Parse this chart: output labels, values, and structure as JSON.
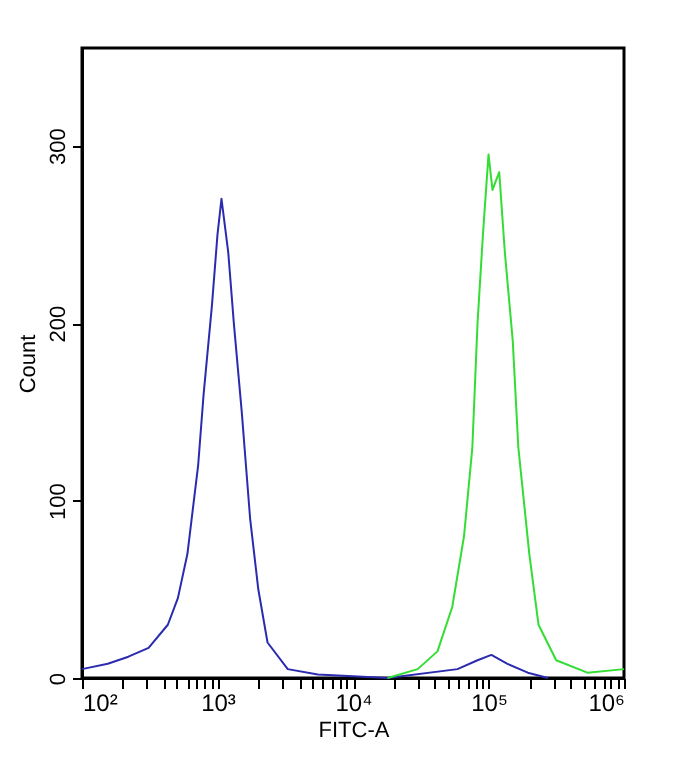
{
  "chart_data": {
    "type": "line",
    "xlabel": "FITC-A",
    "ylabel": "Count",
    "log": "x",
    "xlim": [
      100,
      1000000
    ],
    "ylim": [
      0,
      355
    ],
    "xticks": [
      {
        "value": 100,
        "label": "10²"
      },
      {
        "value": 200,
        "label": null
      },
      {
        "value": 300,
        "label": null
      },
      {
        "value": 400,
        "label": null
      },
      {
        "value": 500,
        "label": null
      },
      {
        "value": 600,
        "label": null
      },
      {
        "value": 700,
        "label": null
      },
      {
        "value": 800,
        "label": null
      },
      {
        "value": 900,
        "label": null
      },
      {
        "value": 1000,
        "label": "10³"
      },
      {
        "value": 2000,
        "label": null
      },
      {
        "value": 3000,
        "label": null
      },
      {
        "value": 4000,
        "label": null
      },
      {
        "value": 5000,
        "label": null
      },
      {
        "value": 6000,
        "label": null
      },
      {
        "value": 7000,
        "label": null
      },
      {
        "value": 8000,
        "label": null
      },
      {
        "value": 9000,
        "label": null
      },
      {
        "value": 10000,
        "label": "10⁴"
      },
      {
        "value": 20000,
        "label": null
      },
      {
        "value": 30000,
        "label": null
      },
      {
        "value": 40000,
        "label": null
      },
      {
        "value": 50000,
        "label": null
      },
      {
        "value": 60000,
        "label": null
      },
      {
        "value": 70000,
        "label": null
      },
      {
        "value": 80000,
        "label": null
      },
      {
        "value": 90000,
        "label": null
      },
      {
        "value": 100000,
        "label": "10⁵"
      },
      {
        "value": 200000,
        "label": null
      },
      {
        "value": 300000,
        "label": null
      },
      {
        "value": 400000,
        "label": null
      },
      {
        "value": 500000,
        "label": null
      },
      {
        "value": 600000,
        "label": null
      },
      {
        "value": 700000,
        "label": null
      },
      {
        "value": 800000,
        "label": null
      },
      {
        "value": 900000,
        "label": null
      },
      {
        "value": 1000000,
        "label": "10⁶"
      }
    ],
    "yticks": [
      0,
      100,
      200,
      300
    ],
    "grid": false,
    "legend": false,
    "marker": "none",
    "line_style": "solid",
    "series": [
      {
        "color": "#2b2bb0",
        "x": [
          100,
          155,
          220,
          310,
          430,
          510,
          600,
          720,
          790,
          910,
          1000,
          1070,
          1200,
          1320,
          1510,
          1740,
          2000,
          2340,
          3300,
          5500,
          18000,
          59000,
          83000,
          105000,
          138000,
          195000,
          275000
        ],
        "values": [
          5,
          8,
          12,
          17,
          30,
          45,
          70,
          120,
          160,
          210,
          250,
          270,
          240,
          200,
          150,
          90,
          50,
          20,
          5,
          2,
          0,
          5,
          10,
          13,
          8,
          3,
          0
        ]
      },
      {
        "color": "#33dd33",
        "x": [
          18000,
          30000,
          42000,
          54000,
          66000,
          76000,
          83000,
          91000,
          100000,
          107000,
          120000,
          132000,
          151000,
          166000,
          200000,
          234000,
          316000,
          537000,
          1000000
        ],
        "values": [
          0,
          5,
          15,
          40,
          80,
          130,
          200,
          250,
          295,
          275,
          285,
          240,
          190,
          130,
          70,
          30,
          10,
          3,
          5
        ]
      }
    ]
  }
}
